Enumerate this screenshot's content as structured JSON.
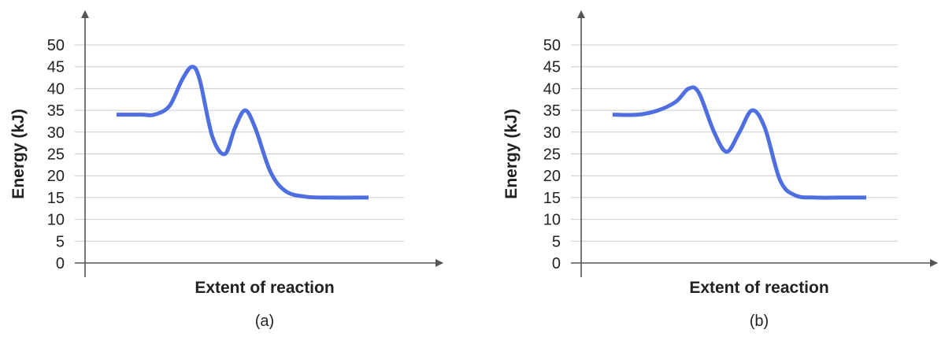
{
  "colors": {
    "curve": "#4F6FE0",
    "axis": "#555555",
    "grid": "#C8CDD0",
    "text": "#222222"
  },
  "chart_data": [
    {
      "type": "line",
      "panel_label": "(a)",
      "xlabel": "Extent of reaction",
      "ylabel": "Energy (kJ)",
      "ylim": [
        0,
        50
      ],
      "yticks": [
        "0",
        "5",
        "10",
        "15",
        "20",
        "25",
        "30",
        "35",
        "40",
        "45",
        "50"
      ],
      "grid": true,
      "x_axis_ticks": false,
      "series": [
        {
          "x": [
            0.0,
            0.1,
            0.15,
            0.21,
            0.26,
            0.3,
            0.33,
            0.38,
            0.43,
            0.47,
            0.51,
            0.55,
            0.61,
            0.67,
            0.75,
            0.85,
            1.0
          ],
          "y": [
            34,
            34,
            34,
            36,
            42,
            45,
            42,
            29,
            25,
            31,
            35,
            31,
            21,
            16.5,
            15.2,
            15,
            15
          ]
        }
      ]
    },
    {
      "type": "line",
      "panel_label": "(b)",
      "xlabel": "Extent of reaction",
      "ylabel": "Energy (kJ)",
      "ylim": [
        0,
        50
      ],
      "yticks": [
        "0",
        "5",
        "10",
        "15",
        "20",
        "25",
        "30",
        "35",
        "40",
        "45",
        "50"
      ],
      "grid": true,
      "x_axis_ticks": false,
      "series": [
        {
          "x": [
            0.0,
            0.1,
            0.18,
            0.25,
            0.3,
            0.34,
            0.4,
            0.45,
            0.5,
            0.55,
            0.6,
            0.66,
            0.72,
            0.8,
            0.9,
            1.0
          ],
          "y": [
            34,
            34,
            35,
            37,
            40,
            39,
            30,
            25.5,
            30,
            35,
            31,
            19,
            15.5,
            15,
            15,
            15
          ]
        }
      ]
    }
  ]
}
